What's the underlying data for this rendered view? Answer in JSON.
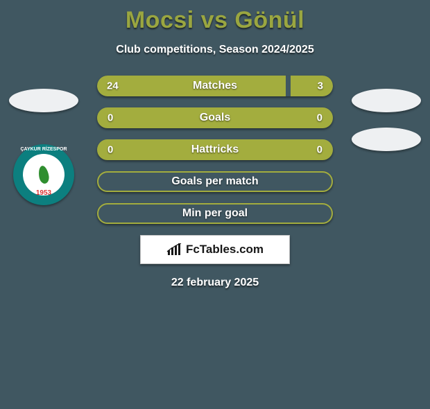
{
  "title": "Mocsi vs Gönül",
  "subtitle": "Club competitions, Season 2024/2025",
  "date": "22 february 2025",
  "brand": {
    "label": "FcTables.com"
  },
  "colors": {
    "background": "#405761",
    "accent": "#a3ad3e",
    "title": "#9aa640",
    "text": "#ffffff",
    "logo_bg": "#ffffff"
  },
  "left_badge": {
    "name": "caykur-rizespor",
    "ring_color": "#0c7f7f",
    "center_color": "#ffffff",
    "year": "1953"
  },
  "stats": [
    {
      "key": "matches",
      "label": "Matches",
      "left_value": "24",
      "right_value": "3",
      "left_pct": 80,
      "right_pct": 20,
      "gap_pct": 0,
      "has_values": true
    },
    {
      "key": "goals",
      "label": "Goals",
      "left_value": "0",
      "right_value": "0",
      "left_pct": 100,
      "right_pct": 0,
      "gap_pct": 0,
      "has_values": true
    },
    {
      "key": "hattricks",
      "label": "Hattricks",
      "left_value": "0",
      "right_value": "0",
      "left_pct": 100,
      "right_pct": 0,
      "gap_pct": 0,
      "has_values": true
    },
    {
      "key": "goals_per_match",
      "label": "Goals per match",
      "left_value": "",
      "right_value": "",
      "left_pct": 0,
      "right_pct": 0,
      "gap_pct": 100,
      "has_values": false
    },
    {
      "key": "min_per_goal",
      "label": "Min per goal",
      "left_value": "",
      "right_value": "",
      "left_pct": 0,
      "right_pct": 0,
      "gap_pct": 100,
      "has_values": false
    }
  ]
}
